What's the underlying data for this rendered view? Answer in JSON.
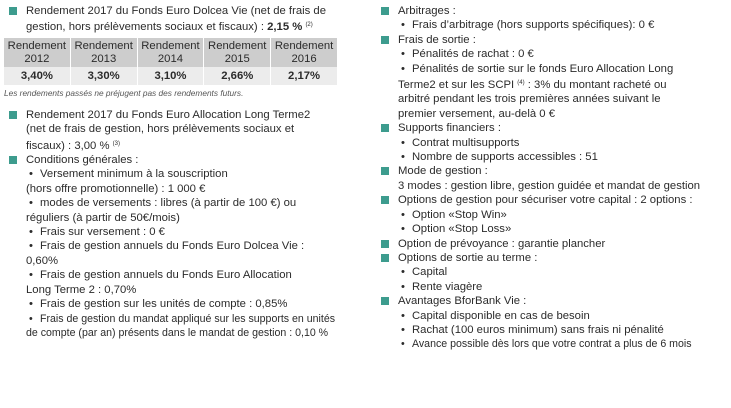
{
  "left": {
    "dolcea": {
      "line1": "Rendement 2017 du Fonds Euro Dolcea Vie (net de frais de",
      "line2": "gestion, hors prélèvements sociaux et fiscaux) : ",
      "value": "2,15 %",
      "note_ref": "(2)"
    },
    "table": {
      "header_word": "Rendement",
      "years": [
        "2012",
        "2013",
        "2014",
        "2015",
        "2016"
      ],
      "values": [
        "3,40%",
        "3,30%",
        "3,10%",
        "2,66%",
        "2,17%"
      ]
    },
    "disclaimer": "Les rendements passés ne préjugent pas des rendements futurs.",
    "allocation": {
      "line1": "Rendement 2017 du Fonds Euro Allocation Long Terme2",
      "line2": "(net de frais de gestion, hors prélèvements sociaux et",
      "line3": "fiscaux) : 3,00 % ",
      "note_ref": "(3)"
    },
    "conditions": {
      "title": "Conditions générales :",
      "items": [
        [
          "Versement minimum à la souscription",
          "(hors offre promotionnelle) : 1 000 €"
        ],
        [
          "modes de versements : libres (à partir de 100 €) ou",
          "réguliers (à partir de 50€/mois)"
        ],
        [
          "Frais sur versement : 0 €"
        ],
        [
          "Frais de gestion annuels du Fonds Euro Dolcea Vie :",
          "0,60%"
        ],
        [
          "Frais de gestion annuels du Fonds Euro Allocation",
          "Long Terme 2 : 0,70%"
        ],
        [
          "Frais de gestion sur les unités de compte : 0,85%"
        ],
        [
          "Frais de gestion du mandat appliqué sur les supports en unités",
          "de compte (par an) présents dans le mandat de gestion : 0,10 %"
        ]
      ]
    }
  },
  "right": {
    "arbitrages": {
      "title": "Arbitrages :",
      "item": "Frais d’arbitrage (hors supports spécifiques): 0 €"
    },
    "sortie": {
      "title": "Frais de sortie :",
      "item1": "Pénalités de rachat : 0 €",
      "item2_line1": "Pénalités de sortie sur le fonds Euro Allocation Long",
      "item2_line2a": "Terme2 et sur les SCPI ",
      "item2_ref": "(4)",
      "item2_line2b": " : 3% du montant racheté ou",
      "item2_line3": "arbitré pendant les trois premières années suivant le",
      "item2_line4": "premier versement, au-delà 0 €"
    },
    "supports": {
      "title": "Supports financiers :",
      "items": [
        "Contrat multisupports",
        "Nombre de supports accessibles : 51"
      ]
    },
    "mode": {
      "title": "Mode de gestion :",
      "text": "3 modes : gestion libre, gestion guidée et mandat de gestion"
    },
    "options": {
      "title": "Options de gestion pour sécuriser votre capital : 2 options :",
      "items": [
        "Option «Stop Win»",
        "Option «Stop Loss»"
      ]
    },
    "prevoyance": {
      "title": "Option de prévoyance : garantie plancher"
    },
    "sortie_terme": {
      "title": "Options de sortie au terme :",
      "items": [
        "Capital",
        "Rente viagère"
      ]
    },
    "avantages": {
      "title": "Avantages BforBank Vie :",
      "items": [
        "Capital disponible en cas de besoin",
        "Rachat (100 euros minimum) sans frais ni pénalité",
        "Avance possible dès lors que votre contrat a plus de 6 mois"
      ]
    }
  }
}
